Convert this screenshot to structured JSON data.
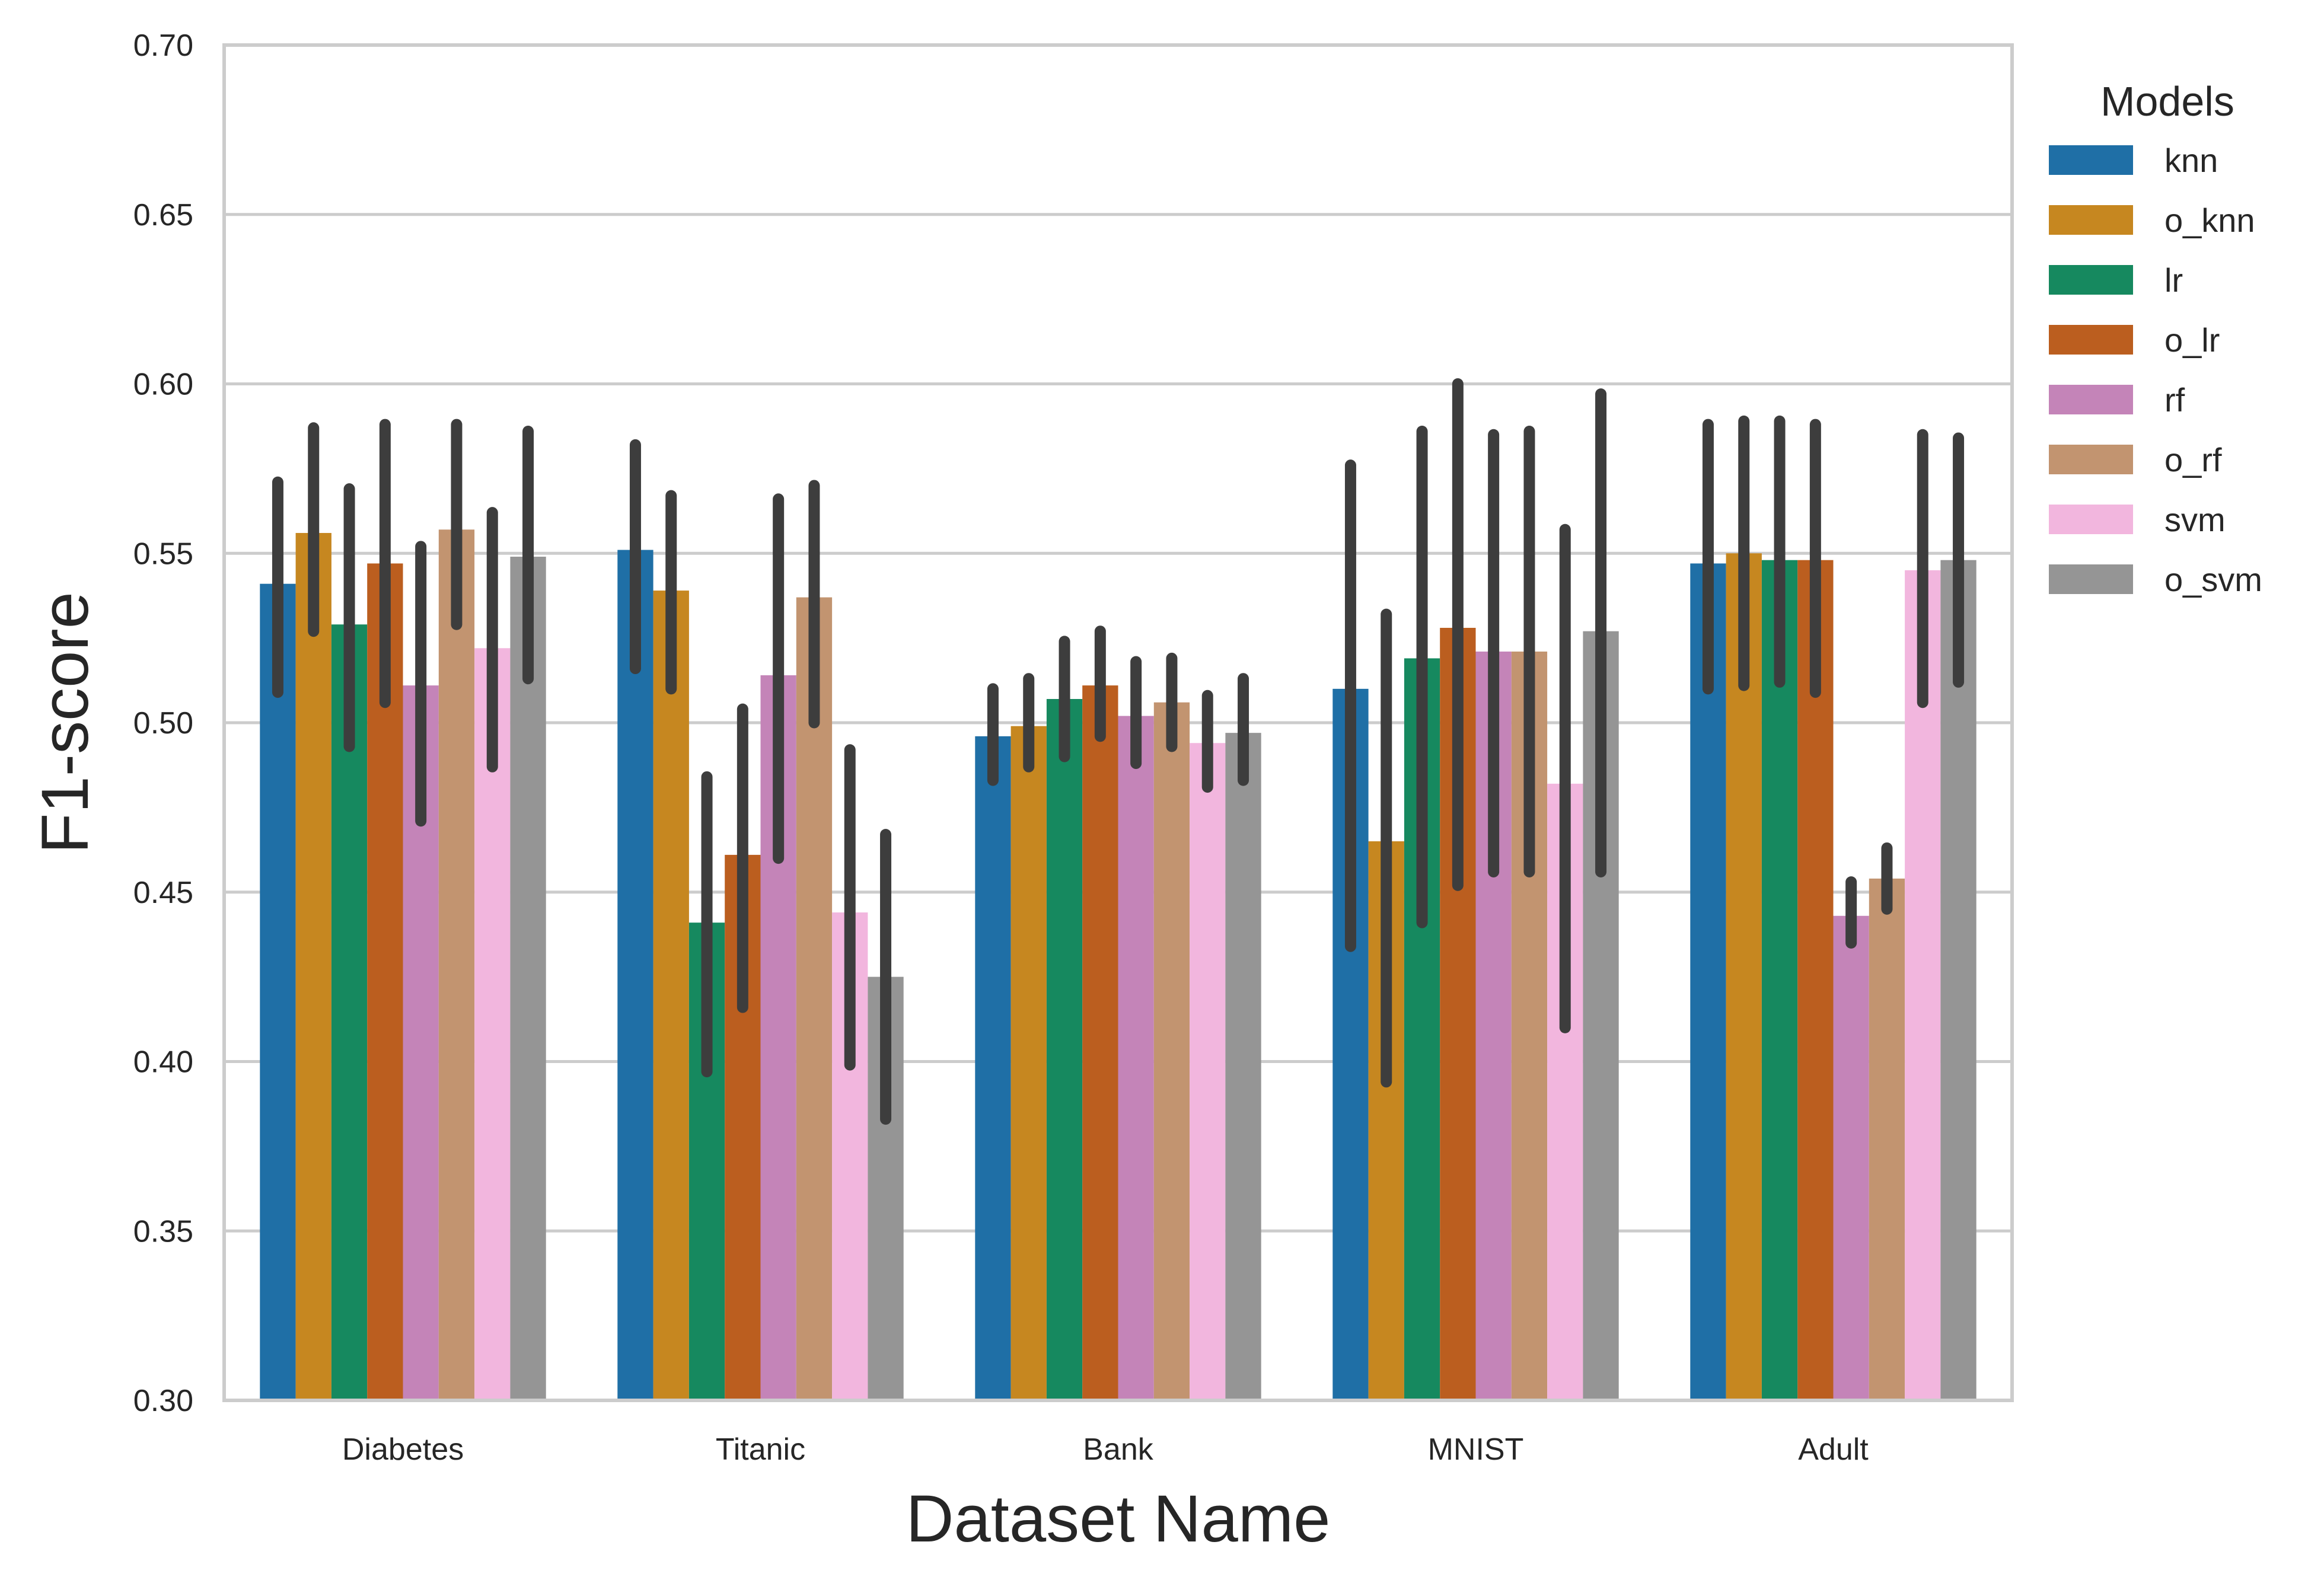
{
  "chart_data": {
    "type": "bar",
    "xlabel": "Dataset Name",
    "ylabel": "F1-score",
    "ylim": [
      0.3,
      0.7
    ],
    "yticks": [
      "0.30",
      "0.35",
      "0.40",
      "0.45",
      "0.50",
      "0.55",
      "0.60",
      "0.65",
      "0.70"
    ],
    "grid": "horizontal",
    "legend": {
      "title": "Models",
      "placement": "outside-right-top"
    },
    "categories": [
      "Diabetes",
      "Titanic",
      "Bank",
      "MNIST",
      "Adult"
    ],
    "series": [
      {
        "name": "knn",
        "color": "#1f6fa6",
        "values": [
          0.541,
          0.551,
          0.496,
          0.51,
          0.547
        ],
        "err_low": [
          0.509,
          0.516,
          0.483,
          0.434,
          0.51
        ],
        "err_high": [
          0.571,
          0.582,
          0.51,
          0.576,
          0.588
        ]
      },
      {
        "name": "o_knn",
        "color": "#c68720",
        "values": [
          0.556,
          0.539,
          0.499,
          0.465,
          0.55
        ],
        "err_low": [
          0.527,
          0.51,
          0.487,
          0.394,
          0.511
        ],
        "err_high": [
          0.587,
          0.567,
          0.513,
          0.532,
          0.589
        ]
      },
      {
        "name": "lr",
        "color": "#16895f",
        "values": [
          0.529,
          0.441,
          0.507,
          0.519,
          0.548
        ],
        "err_low": [
          0.493,
          0.397,
          0.49,
          0.441,
          0.512
        ],
        "err_high": [
          0.569,
          0.484,
          0.524,
          0.586,
          0.589
        ]
      },
      {
        "name": "o_lr",
        "color": "#bb5e1f",
        "values": [
          0.547,
          0.461,
          0.511,
          0.528,
          0.548
        ],
        "err_low": [
          0.506,
          0.416,
          0.496,
          0.452,
          0.509
        ],
        "err_high": [
          0.588,
          0.504,
          0.527,
          0.6,
          0.588
        ]
      },
      {
        "name": "rf",
        "color": "#c484b8",
        "values": [
          0.511,
          0.514,
          0.502,
          0.521,
          0.443
        ],
        "err_low": [
          0.471,
          0.46,
          0.488,
          0.456,
          0.435
        ],
        "err_high": [
          0.552,
          0.566,
          0.518,
          0.585,
          0.453
        ]
      },
      {
        "name": "o_rf",
        "color": "#c29470",
        "values": [
          0.557,
          0.537,
          0.506,
          0.521,
          0.454
        ],
        "err_low": [
          0.529,
          0.5,
          0.493,
          0.456,
          0.445
        ],
        "err_high": [
          0.588,
          0.57,
          0.519,
          0.586,
          0.463
        ]
      },
      {
        "name": "svm",
        "color": "#f2b6de",
        "values": [
          0.522,
          0.444,
          0.494,
          0.482,
          0.545
        ],
        "err_low": [
          0.487,
          0.399,
          0.481,
          0.41,
          0.506
        ],
        "err_high": [
          0.562,
          0.492,
          0.508,
          0.557,
          0.585
        ]
      },
      {
        "name": "o_svm",
        "color": "#959595",
        "values": [
          0.549,
          0.425,
          0.497,
          0.527,
          0.548
        ],
        "err_low": [
          0.513,
          0.383,
          0.483,
          0.456,
          0.512
        ],
        "err_high": [
          0.586,
          0.467,
          0.513,
          0.597,
          0.584
        ]
      }
    ]
  }
}
